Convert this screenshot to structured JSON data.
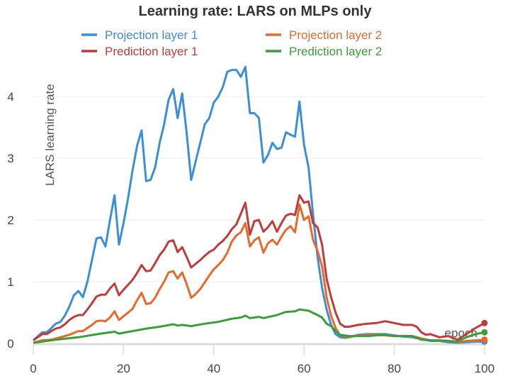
{
  "chart_data": {
    "type": "line",
    "title": "Learning rate: LARS on MLPs only",
    "xlabel": "epoch",
    "ylabel": "LARS learning rate",
    "xlim": [
      0,
      100
    ],
    "ylim": [
      0,
      4.6
    ],
    "x_ticks": [
      0,
      20,
      40,
      60,
      80,
      100
    ],
    "y_ticks": [
      0,
      1,
      2,
      3,
      4
    ],
    "grid": true,
    "legend_placement": "top",
    "series": [
      {
        "name": "Projection layer 1",
        "color": "#3a8fd9",
        "x": [
          0,
          2,
          3,
          4,
          5,
          6,
          7,
          8,
          9,
          10,
          11,
          12,
          13,
          14,
          15,
          16,
          17,
          18,
          19,
          20,
          21,
          22,
          23,
          24,
          25,
          26,
          27,
          28,
          29,
          30,
          31,
          32,
          33,
          34,
          35,
          36,
          37,
          38,
          39,
          40,
          41,
          42,
          43,
          44,
          45,
          46,
          47,
          48,
          49,
          50,
          51,
          52,
          53,
          54,
          55,
          56,
          57,
          58,
          59,
          60,
          61,
          62,
          63,
          64,
          65,
          66,
          67,
          68,
          69,
          70,
          72,
          74,
          78,
          80,
          82,
          84,
          86,
          88,
          90,
          92,
          94,
          96,
          98,
          100
        ],
        "y": [
          0.05,
          0.18,
          0.18,
          0.25,
          0.32,
          0.35,
          0.45,
          0.6,
          0.78,
          0.85,
          0.75,
          1.0,
          1.35,
          1.7,
          1.72,
          1.57,
          2.0,
          2.4,
          1.6,
          1.95,
          2.35,
          2.8,
          3.2,
          3.45,
          2.63,
          2.65,
          2.85,
          3.25,
          3.55,
          3.95,
          4.12,
          3.65,
          4.05,
          3.4,
          2.65,
          2.95,
          3.25,
          3.55,
          3.65,
          3.9,
          4.0,
          4.15,
          4.4,
          4.43,
          4.43,
          4.32,
          4.48,
          3.73,
          3.73,
          3.65,
          2.93,
          3.05,
          3.25,
          3.15,
          3.17,
          3.42,
          3.38,
          3.35,
          3.92,
          3.22,
          2.85,
          2.1,
          1.4,
          0.9,
          0.55,
          0.3,
          0.15,
          0.1,
          0.09,
          0.1,
          0.14,
          0.15,
          0.15,
          0.13,
          0.11,
          0.1,
          0.07,
          0.04,
          0.04,
          0.02,
          0.01,
          0.02,
          0.03,
          0.03
        ]
      },
      {
        "name": "Prediction layer 1",
        "color": "#c23b3b",
        "x": [
          0,
          2,
          3,
          4,
          5,
          6,
          7,
          8,
          9,
          10,
          11,
          12,
          13,
          14,
          15,
          16,
          17,
          18,
          19,
          20,
          21,
          22,
          23,
          24,
          25,
          26,
          27,
          28,
          29,
          30,
          31,
          32,
          33,
          34,
          35,
          36,
          37,
          38,
          39,
          40,
          41,
          42,
          43,
          44,
          45,
          46,
          47,
          48,
          49,
          50,
          51,
          52,
          53,
          54,
          55,
          56,
          57,
          58,
          59,
          60,
          61,
          62,
          63,
          64,
          65,
          66,
          67,
          68,
          69,
          70,
          72,
          74,
          76,
          78,
          80,
          82,
          84,
          85,
          86,
          87,
          88,
          90,
          92,
          94,
          96,
          98,
          100
        ],
        "y": [
          0.05,
          0.15,
          0.15,
          0.2,
          0.24,
          0.26,
          0.31,
          0.38,
          0.43,
          0.46,
          0.46,
          0.55,
          0.65,
          0.76,
          0.79,
          0.79,
          0.89,
          0.97,
          0.78,
          0.87,
          0.95,
          1.03,
          1.14,
          1.27,
          1.17,
          1.18,
          1.3,
          1.43,
          1.52,
          1.65,
          1.67,
          1.48,
          1.56,
          1.4,
          1.23,
          1.29,
          1.35,
          1.42,
          1.48,
          1.52,
          1.6,
          1.66,
          1.74,
          1.85,
          1.93,
          2.1,
          2.28,
          1.76,
          1.98,
          2.0,
          1.81,
          1.88,
          1.98,
          1.81,
          1.95,
          2.07,
          2.1,
          2.08,
          2.4,
          2.28,
          2.3,
          1.95,
          1.88,
          1.6,
          1.05,
          0.75,
          0.5,
          0.32,
          0.27,
          0.27,
          0.3,
          0.32,
          0.33,
          0.36,
          0.33,
          0.3,
          0.3,
          0.27,
          0.18,
          0.14,
          0.15,
          0.1,
          0.12,
          0.06,
          0.15,
          0.25,
          0.33
        ]
      },
      {
        "name": "Projection layer 2",
        "color": "#e8692a",
        "x": [
          0,
          2,
          4,
          6,
          8,
          10,
          11,
          12,
          13,
          14,
          15,
          16,
          17,
          18,
          19,
          20,
          21,
          22,
          23,
          24,
          25,
          26,
          27,
          28,
          29,
          30,
          31,
          32,
          33,
          34,
          35,
          36,
          37,
          38,
          39,
          40,
          41,
          42,
          43,
          44,
          45,
          46,
          47,
          48,
          49,
          50,
          51,
          52,
          53,
          54,
          55,
          56,
          57,
          58,
          59,
          60,
          61,
          62,
          63,
          64,
          65,
          66,
          67,
          68,
          70,
          72,
          76,
          80,
          84,
          86,
          88,
          92,
          94,
          96,
          100
        ],
        "y": [
          0.01,
          0.05,
          0.06,
          0.1,
          0.14,
          0.2,
          0.2,
          0.25,
          0.3,
          0.36,
          0.37,
          0.36,
          0.42,
          0.52,
          0.38,
          0.44,
          0.5,
          0.56,
          0.7,
          0.82,
          0.64,
          0.65,
          0.74,
          0.88,
          1.0,
          1.15,
          1.17,
          1.05,
          1.15,
          0.96,
          0.74,
          0.8,
          0.88,
          0.99,
          1.1,
          1.2,
          1.27,
          1.35,
          1.47,
          1.65,
          1.75,
          1.8,
          1.95,
          1.57,
          1.67,
          1.72,
          1.47,
          1.62,
          1.68,
          1.6,
          1.73,
          1.84,
          1.9,
          1.8,
          2.25,
          2.0,
          2.06,
          1.68,
          1.5,
          1.25,
          0.75,
          0.45,
          0.25,
          0.13,
          0.1,
          0.13,
          0.14,
          0.12,
          0.12,
          0.08,
          0.05,
          0.04,
          0.02,
          0.04,
          0.06
        ]
      },
      {
        "name": "Prediction layer 2",
        "color": "#3a9e3a",
        "x": [
          0,
          5,
          10,
          15,
          18,
          19,
          22,
          25,
          28,
          31,
          32,
          33,
          35,
          38,
          41,
          44,
          46,
          47,
          48,
          50,
          51,
          54,
          56,
          58,
          59,
          61,
          63,
          64,
          65,
          66,
          67,
          68,
          70,
          74,
          78,
          80,
          84,
          86,
          88,
          90,
          92,
          94,
          96,
          98,
          100
        ],
        "y": [
          0.01,
          0.06,
          0.1,
          0.16,
          0.19,
          0.16,
          0.2,
          0.24,
          0.27,
          0.31,
          0.29,
          0.3,
          0.28,
          0.32,
          0.35,
          0.4,
          0.42,
          0.45,
          0.41,
          0.43,
          0.41,
          0.46,
          0.51,
          0.52,
          0.55,
          0.53,
          0.46,
          0.42,
          0.32,
          0.28,
          0.2,
          0.14,
          0.12,
          0.12,
          0.14,
          0.12,
          0.12,
          0.06,
          0.05,
          0.05,
          0.04,
          0.03,
          0.1,
          0.15,
          0.18
        ]
      }
    ]
  }
}
